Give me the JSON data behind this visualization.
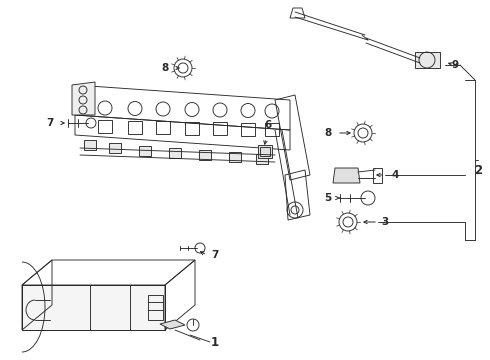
{
  "bg_color": "#ffffff",
  "line_color": "#2a2a2a",
  "fig_width": 4.9,
  "fig_height": 3.6,
  "dpi": 100,
  "label_fontsize": 7.5,
  "lw": 0.65
}
